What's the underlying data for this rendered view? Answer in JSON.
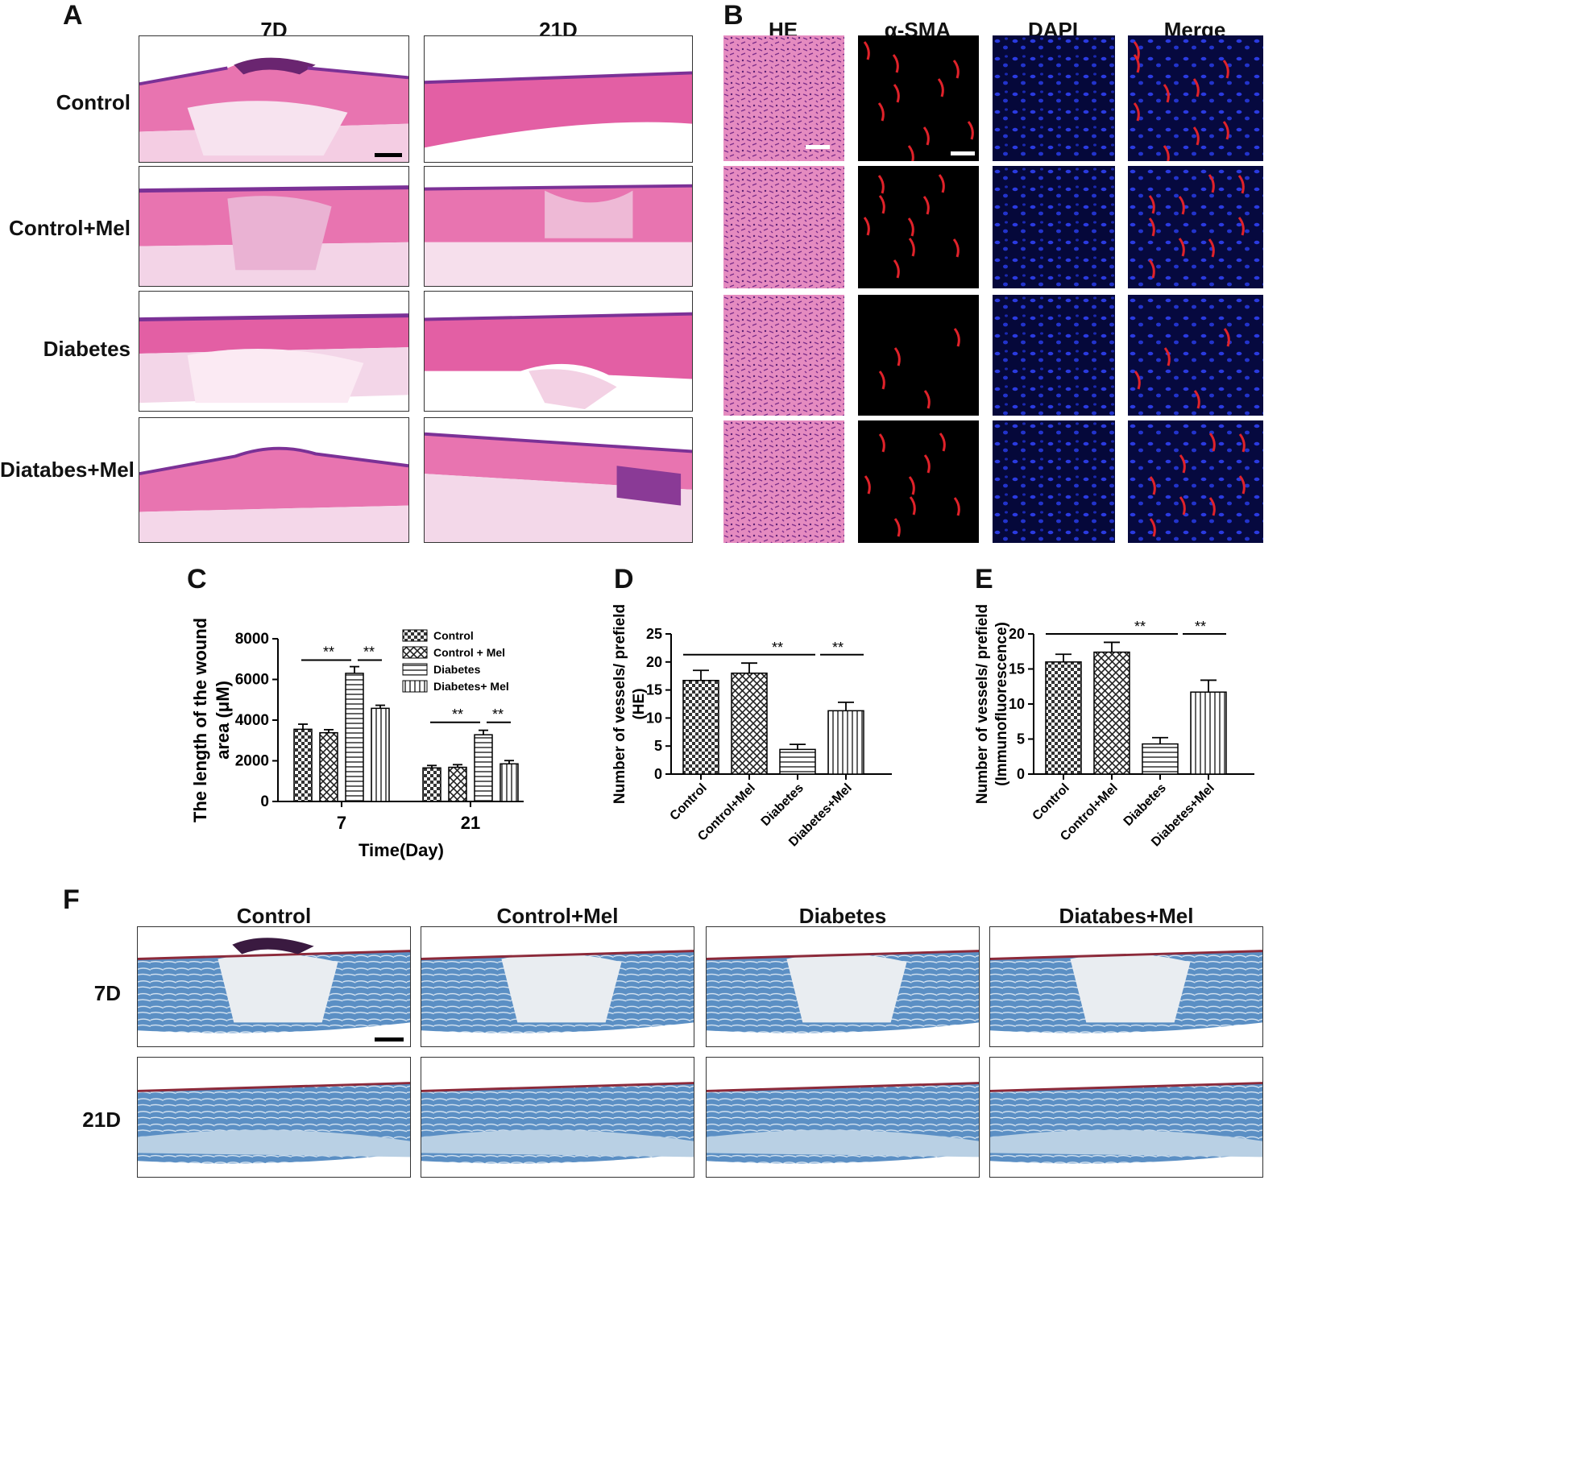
{
  "panel_labels": {
    "a": "A",
    "b": "B",
    "c": "C",
    "d": "D",
    "e": "E",
    "f": "F"
  },
  "panel_a": {
    "columns": [
      "7D",
      "21D"
    ],
    "rows": [
      "Control",
      "Control+Mel",
      "Diabetes",
      "Diatabes+Mel"
    ]
  },
  "panel_b": {
    "columns": [
      "HE",
      "α-SMA",
      "DAPI",
      "Merge"
    ]
  },
  "panel_f": {
    "columns": [
      "Control",
      "Control+Mel",
      "Diabetes",
      "Diatabes+Mel"
    ],
    "rows": [
      "7D",
      "21D"
    ]
  },
  "colors": {
    "he_pink": "#e26aa8",
    "he_purple": "#8a3a96",
    "trichrome_blue": "#4a7fb6",
    "sma_red": "#e0222a",
    "dapi_blue": "#1f2fc8"
  },
  "chart_data": [
    {
      "id": "C",
      "type": "bar",
      "ylabel": "The length of the wound area (μM)",
      "xlabel": "Time(Day)",
      "categories": [
        "7",
        "21"
      ],
      "ylim": [
        0,
        8000
      ],
      "yticks": [
        "0",
        "2000",
        "4000",
        "6000",
        "8000"
      ],
      "series": [
        {
          "name": "Control",
          "values": [
            3550,
            1650
          ],
          "errors": [
            250,
            120
          ]
        },
        {
          "name": "Control + Mel",
          "values": [
            3380,
            1680
          ],
          "errors": [
            150,
            130
          ]
        },
        {
          "name": "Diabetes",
          "values": [
            6300,
            3280
          ],
          "errors": [
            330,
            220
          ]
        },
        {
          "name": "Diabetes+ Mel",
          "values": [
            4580,
            1850
          ],
          "errors": [
            150,
            160
          ]
        }
      ],
      "annotations": [
        "**",
        "**",
        "**",
        "**"
      ]
    },
    {
      "id": "D",
      "type": "bar",
      "ylabel": "Number of vessels/ prefield (HE)",
      "categories": [
        "Control",
        "Control+Mel",
        "Diabetes",
        "Diabetes+Mel"
      ],
      "values": [
        16.7,
        18.0,
        4.4,
        11.3
      ],
      "errors": [
        1.8,
        1.8,
        0.9,
        1.5
      ],
      "ylim": [
        0,
        25
      ],
      "yticks": [
        "0",
        "5",
        "10",
        "15",
        "20",
        "25"
      ],
      "annotations": [
        "**",
        "**"
      ]
    },
    {
      "id": "E",
      "type": "bar",
      "ylabel": "Number of vessels/ prefield (Immunofluorescence)",
      "categories": [
        "Control",
        "Control+Mel",
        "Diabetes",
        "Diabetes+Mel"
      ],
      "values": [
        16.0,
        17.4,
        4.3,
        11.7
      ],
      "errors": [
        1.1,
        1.4,
        0.9,
        1.7
      ],
      "ylim": [
        0,
        20
      ],
      "yticks": [
        "0",
        "5",
        "10",
        "15",
        "20"
      ],
      "annotations": [
        "**",
        "**"
      ]
    }
  ]
}
